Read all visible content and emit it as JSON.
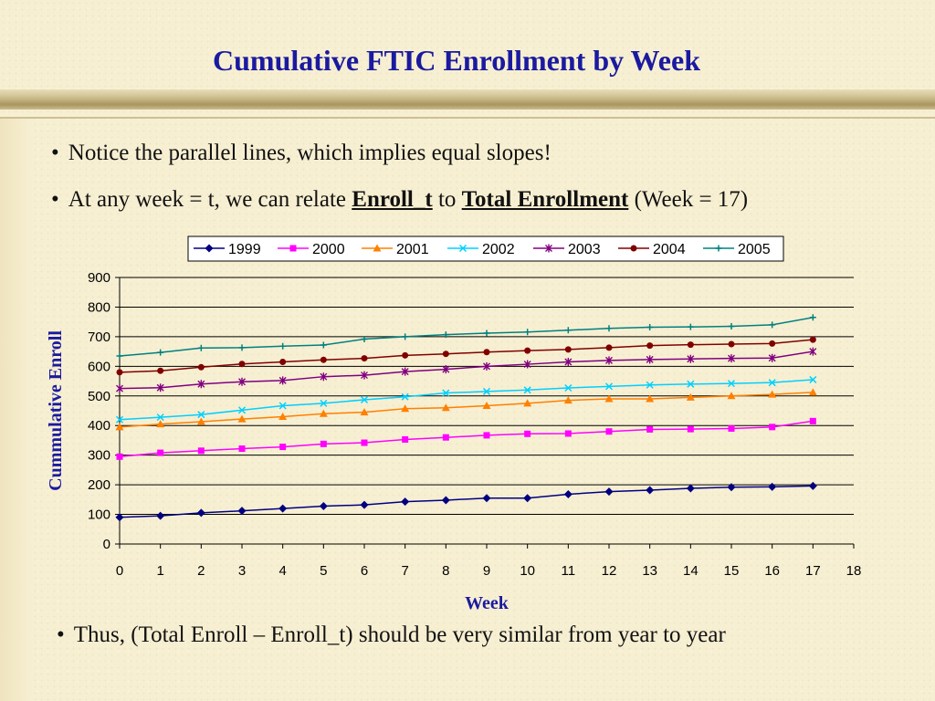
{
  "slide": {
    "title": "Cumulative FTIC Enrollment by Week",
    "bullet1": "Notice the parallel lines, which implies equal slopes!",
    "bullet2_pre": "At any week = t, we can relate ",
    "bullet2_term1": "Enroll_t",
    "bullet2_mid": " to ",
    "bullet2_term2": "Total Enrollment",
    "bullet2_post": " (Week = 17)",
    "bullet3": "Thus, (Total Enroll – Enroll_t) should be very similar from year to year",
    "bullet_glyph": "•"
  },
  "chart_data": {
    "type": "line",
    "xlabel": "Week",
    "ylabel": "Cummulative Enroll",
    "xlim": [
      0,
      18
    ],
    "ylim": [
      0,
      900
    ],
    "xticks": [
      0,
      1,
      2,
      3,
      4,
      5,
      6,
      7,
      8,
      9,
      10,
      11,
      12,
      13,
      14,
      15,
      16,
      17,
      18
    ],
    "yticks": [
      0,
      100,
      200,
      300,
      400,
      500,
      600,
      700,
      800,
      900
    ],
    "grid": "horizontal",
    "legend_position": "top",
    "x": [
      0,
      1,
      2,
      3,
      4,
      5,
      6,
      7,
      8,
      9,
      10,
      11,
      12,
      13,
      14,
      15,
      16,
      17
    ],
    "series": [
      {
        "name": "1999",
        "color": "#000080",
        "marker": "diamond",
        "values": [
          90,
          95,
          105,
          112,
          120,
          128,
          132,
          143,
          148,
          155,
          155,
          168,
          177,
          182,
          188,
          192,
          193,
          196
        ]
      },
      {
        "name": "2000",
        "color": "#ff00ff",
        "marker": "square",
        "values": [
          295,
          308,
          315,
          322,
          328,
          338,
          342,
          353,
          360,
          367,
          372,
          373,
          380,
          387,
          388,
          390,
          395,
          415
        ]
      },
      {
        "name": "2001",
        "color": "#ff8000",
        "marker": "triangle",
        "values": [
          395,
          405,
          413,
          422,
          430,
          440,
          445,
          457,
          460,
          467,
          475,
          485,
          490,
          490,
          495,
          500,
          505,
          512
        ]
      },
      {
        "name": "2002",
        "color": "#00d0ff",
        "marker": "x",
        "values": [
          420,
          428,
          437,
          452,
          467,
          475,
          487,
          497,
          510,
          515,
          520,
          527,
          532,
          537,
          540,
          542,
          545,
          555
        ]
      },
      {
        "name": "2003",
        "color": "#800080",
        "marker": "star",
        "values": [
          525,
          528,
          540,
          548,
          552,
          565,
          570,
          582,
          590,
          600,
          607,
          615,
          620,
          623,
          625,
          627,
          628,
          650
        ]
      },
      {
        "name": "2004",
        "color": "#800000",
        "marker": "circle",
        "values": [
          580,
          585,
          597,
          608,
          615,
          622,
          627,
          637,
          642,
          648,
          653,
          657,
          663,
          670,
          673,
          675,
          677,
          690
        ]
      },
      {
        "name": "2005",
        "color": "#008080",
        "marker": "plus",
        "values": [
          635,
          647,
          662,
          663,
          668,
          672,
          692,
          700,
          707,
          712,
          716,
          722,
          728,
          732,
          733,
          735,
          740,
          765
        ]
      }
    ]
  }
}
